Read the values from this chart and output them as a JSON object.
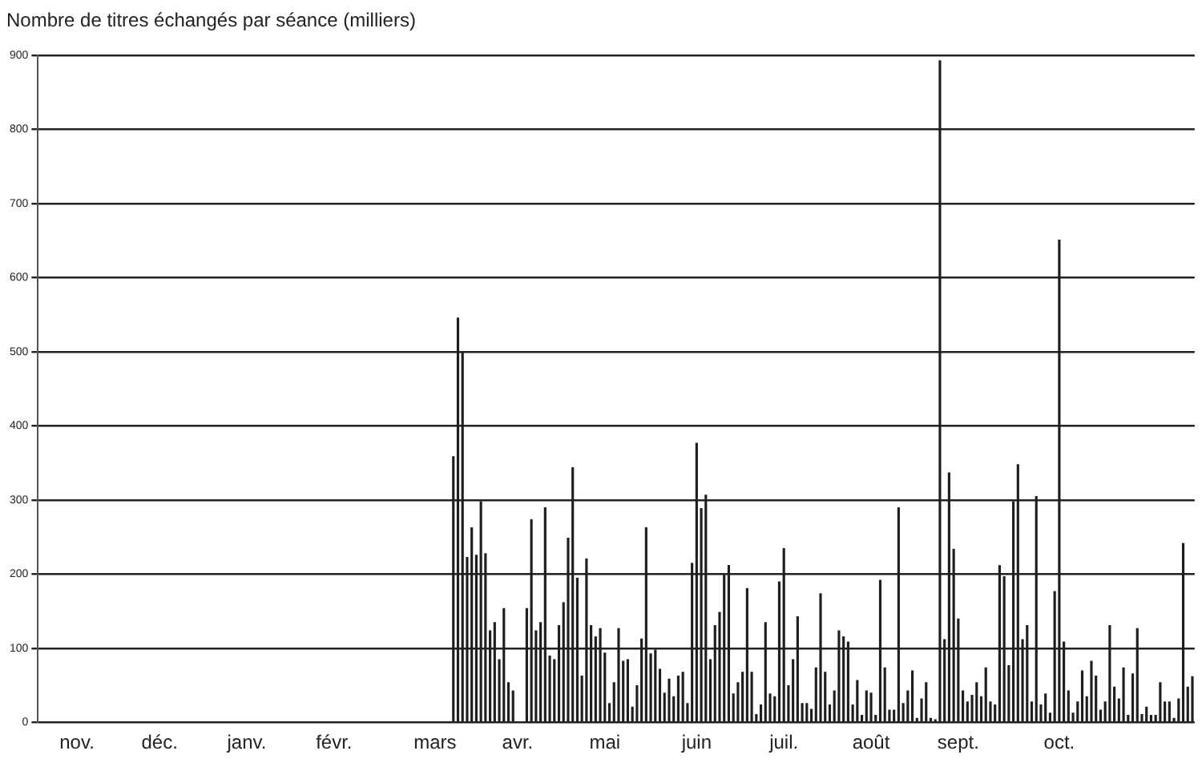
{
  "chart_data": {
    "type": "bar",
    "title": "Nombre de titres échangés par séance (milliers)",
    "categories": [
      null,
      null,
      null,
      null,
      null,
      null,
      null,
      null,
      "nov.",
      null,
      null,
      null,
      null,
      null,
      null,
      null,
      null,
      null,
      null,
      null,
      null,
      null,
      null,
      null,
      null,
      null,
      "déc.",
      null,
      null,
      null,
      null,
      null,
      null,
      null,
      null,
      null,
      null,
      null,
      null,
      null,
      null,
      null,
      null,
      null,
      null,
      "janv.",
      null,
      null,
      null,
      null,
      null,
      null,
      null,
      null,
      null,
      null,
      null,
      null,
      null,
      null,
      null,
      null,
      null,
      null,
      "févr.",
      null,
      null,
      null,
      null,
      null,
      null,
      null,
      null,
      null,
      null,
      null,
      null,
      null,
      null,
      null,
      null,
      null,
      null,
      null,
      null,
      null,
      "mars",
      null,
      null,
      null,
      null,
      null,
      null,
      null,
      null,
      null,
      null,
      null,
      null,
      null,
      null,
      null,
      null,
      null,
      "avr.",
      null,
      null,
      null,
      null,
      null,
      null,
      null,
      null,
      null,
      null,
      null,
      null,
      null,
      null,
      null,
      null,
      null,
      null,
      "mai",
      null,
      null,
      null,
      null,
      null,
      null,
      null,
      null,
      null,
      null,
      null,
      null,
      null,
      null,
      null,
      null,
      null,
      null,
      null,
      "juin",
      null,
      null,
      null,
      null,
      null,
      null,
      null,
      null,
      null,
      null,
      null,
      null,
      null,
      null,
      null,
      null,
      null,
      null,
      "juil.",
      null,
      null,
      null,
      null,
      null,
      null,
      null,
      null,
      null,
      null,
      null,
      null,
      null,
      null,
      null,
      null,
      null,
      null,
      "août",
      null,
      null,
      null,
      null,
      null,
      null,
      null,
      null,
      null,
      null,
      null,
      null,
      null,
      null,
      null,
      null,
      null,
      null,
      "sept.",
      null,
      null,
      null,
      null,
      null,
      null,
      null,
      null,
      null,
      null,
      null,
      null,
      null,
      null,
      null,
      null,
      null,
      null,
      null,
      null,
      null,
      "oct.",
      null,
      null,
      null,
      null,
      null,
      null,
      null,
      null,
      null,
      null,
      null,
      null,
      null,
      null,
      null,
      null,
      null,
      null,
      null,
      null,
      null,
      null,
      null,
      null,
      null,
      null,
      null,
      null,
      null
    ],
    "values": [
      null,
      null,
      null,
      null,
      null,
      null,
      null,
      null,
      null,
      null,
      null,
      null,
      null,
      null,
      null,
      null,
      null,
      null,
      null,
      null,
      null,
      null,
      null,
      null,
      null,
      null,
      null,
      null,
      null,
      null,
      null,
      null,
      null,
      null,
      null,
      null,
      null,
      null,
      null,
      null,
      null,
      null,
      null,
      null,
      null,
      null,
      null,
      null,
      null,
      null,
      null,
      null,
      null,
      null,
      null,
      null,
      null,
      null,
      null,
      null,
      null,
      null,
      null,
      null,
      null,
      null,
      null,
      null,
      null,
      null,
      null,
      null,
      null,
      null,
      null,
      null,
      null,
      null,
      null,
      null,
      null,
      null,
      null,
      null,
      null,
      null,
      null,
      null,
      null,
      null,
      359,
      546,
      499,
      223,
      263,
      226,
      298,
      228,
      124,
      135,
      85,
      154,
      54,
      43,
      null,
      null,
      154,
      274,
      124,
      135,
      290,
      90,
      85,
      131,
      162,
      249,
      344,
      195,
      63,
      221,
      131,
      116,
      127,
      94,
      26,
      54,
      127,
      83,
      85,
      21,
      50,
      113,
      263,
      93,
      98,
      72,
      40,
      59,
      35,
      63,
      68,
      26,
      215,
      377,
      289,
      307,
      85,
      131,
      149,
      199,
      212,
      39,
      54,
      68,
      181,
      68,
      11,
      24,
      135,
      39,
      35,
      190,
      235,
      50,
      85,
      143,
      26,
      26,
      18,
      74,
      174,
      68,
      24,
      43,
      124,
      116,
      109,
      24,
      57,
      10,
      43,
      40,
      10,
      192,
      74,
      17,
      17,
      290,
      26,
      43,
      70,
      6,
      32,
      54,
      6,
      4,
      893,
      112,
      337,
      234,
      140,
      43,
      28,
      37,
      54,
      35,
      74,
      28,
      24,
      212,
      197,
      77,
      298,
      348,
      112,
      131,
      28,
      305,
      24,
      39,
      13,
      177,
      651,
      109,
      43,
      13,
      28,
      70,
      35,
      83,
      63,
      17,
      28,
      131,
      48,
      32,
      74,
      10,
      66,
      127,
      11,
      21,
      10,
      10,
      54,
      28,
      28,
      6,
      32,
      242,
      48,
      62
    ],
    "color": "#1e1e1e",
    "ylim": [
      0,
      900
    ],
    "yticks": [
      0,
      100,
      200,
      300,
      400,
      500,
      600,
      700,
      800,
      900
    ],
    "grid": "y",
    "legend": false
  }
}
